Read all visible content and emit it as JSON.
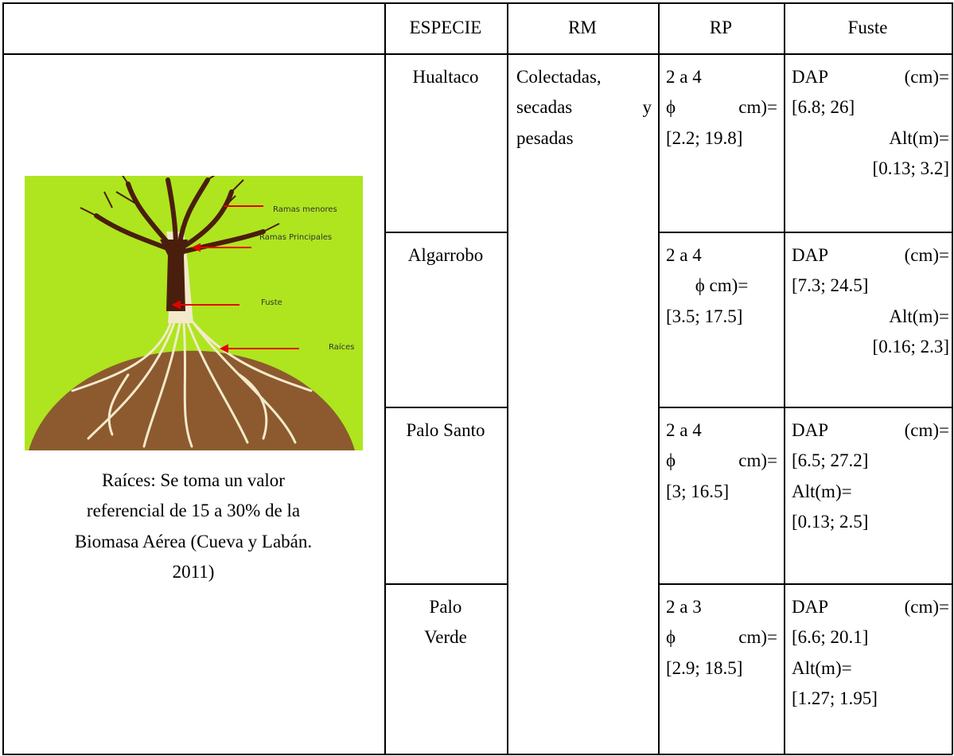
{
  "header": [
    "ESPECIE",
    "RM",
    "RP",
    "Fuste"
  ],
  "figure": {
    "labels": [
      "Ramas menores",
      "Ramas Principales",
      "Fuste",
      "Raíces"
    ],
    "caption": [
      "Raíces: Se toma un valor",
      "referencial de 15 a 30% de la",
      "Biomasa Aérea (Cueva y Labán.",
      "2011)"
    ]
  },
  "rm": [
    "Colectadas,",
    "secadas y",
    "pesadas"
  ],
  "rows": [
    {
      "especie": [
        "Hualtaco"
      ],
      "rp": [
        "2 a 4",
        "ϕ cm)=",
        "[2.2; 19.8]"
      ],
      "fuste": [
        "DAP (cm)=",
        "[6.8; 26]",
        "Alt(m)=",
        "[0.13; 3.2]"
      ]
    },
    {
      "especie": [
        "Algarrobo"
      ],
      "rp": [
        "2 a 4",
        "ϕ cm)=",
        "[3.5; 17.5]"
      ],
      "fuste": [
        "DAP (cm)=",
        "[7.3; 24.5]",
        "Alt(m)=",
        "[0.16; 2.3]"
      ]
    },
    {
      "especie": [
        "Palo Santo"
      ],
      "rp": [
        "2 a 4",
        "ϕ cm)=",
        "[3; 16.5]"
      ],
      "fuste": [
        "DAP (cm)=",
        "[6.5; 27.2]",
        "Alt(m)=",
        "[0.13; 2.5]"
      ]
    },
    {
      "especie": [
        "Palo",
        "Verde"
      ],
      "rp": [
        "2 a 3",
        "ϕ cm)=",
        "[2.9; 18.5]"
      ],
      "fuste": [
        "DAP (cm)=",
        "[6.6; 20.1]",
        "Alt(m)=",
        "[1.27; 1.95]"
      ]
    }
  ]
}
